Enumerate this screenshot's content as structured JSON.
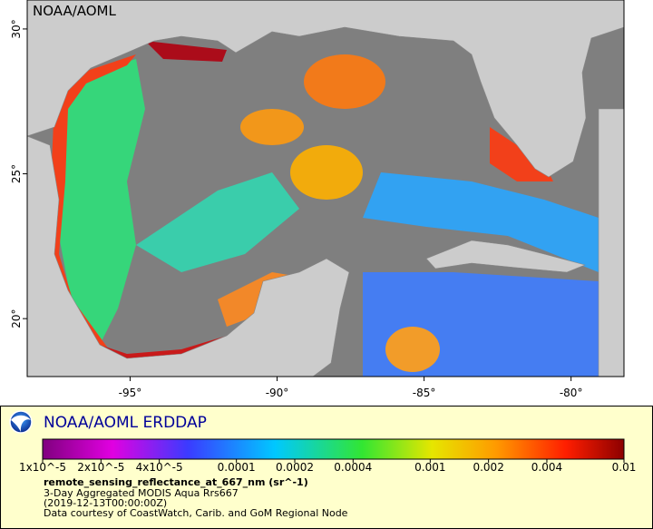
{
  "map": {
    "watermark": "NOAA/AOML",
    "lon_range": [
      -98.5,
      -78.2
    ],
    "lat_range": [
      18,
      31
    ],
    "lon_ticks": [
      {
        "value": -95,
        "label": "-95°"
      },
      {
        "value": -90,
        "label": "-90°"
      },
      {
        "value": -85,
        "label": "-85°"
      },
      {
        "value": -80,
        "label": "-80°"
      }
    ],
    "lat_ticks": [
      {
        "value": 20,
        "label": "20°"
      },
      {
        "value": 25,
        "label": "25°"
      },
      {
        "value": 30,
        "label": "30°"
      }
    ]
  },
  "legend": {
    "title": "NOAA/AOML ERDDAP",
    "colorbar": {
      "range": [
        1e-05,
        0.01
      ],
      "log": true,
      "ticks": [
        {
          "value": 1e-05,
          "label": "1x10^-5"
        },
        {
          "value": 2e-05,
          "label": "2x10^-5"
        },
        {
          "value": 4e-05,
          "label": "4x10^-5"
        },
        0.0001,
        0.0002,
        0.0004,
        0.001,
        0.002,
        0.004,
        0.01
      ]
    },
    "variable": "remote_sensing_reflectance_at_667_nm (sr^-1)",
    "lines": [
      "3-Day Aggregated MODIS Aqua Rrs667",
      "(2019-12-13T00:00:00Z)",
      "Data courtesy of CoastWatch, Carib. and GoM Regional Node"
    ]
  }
}
